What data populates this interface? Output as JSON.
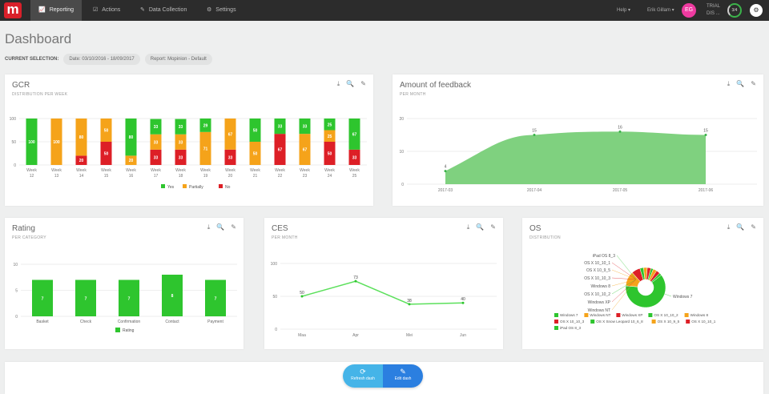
{
  "nav": {
    "logo": "m",
    "items": [
      {
        "icon": "chart-icon",
        "glyph": "📈",
        "label": "Reporting"
      },
      {
        "icon": "checkbox-icon",
        "glyph": "☑",
        "label": "Actions"
      },
      {
        "icon": "link-icon",
        "glyph": "✎",
        "label": "Data Collection"
      },
      {
        "icon": "gear-icon",
        "glyph": "⚙",
        "label": "Settings"
      }
    ],
    "help": "Help ▾",
    "user": "Erik Gillam ▾",
    "initials": "EG",
    "trial": "TRIAL",
    "trial_sub": "DIS ...",
    "ring": "3/4",
    "widget": "⚙"
  },
  "page": {
    "title": "Dashboard",
    "selection_label": "CURRENT SELECTION:",
    "date": "Date: 03/10/2016 - 18/09/2017",
    "report": "Report: Mopinion - Default"
  },
  "tools": [
    "⤓",
    "🔍",
    "✎"
  ],
  "colors": {
    "green": "#2ec52e",
    "orange": "#f5a31a",
    "red": "#dd1f26"
  },
  "cards": {
    "gcr": {
      "title": "GCR",
      "sub": "DISTRIBUTION PER WEEK"
    },
    "feedback": {
      "title": "Amount of feedback",
      "sub": "PER MONTH"
    },
    "rating": {
      "title": "Rating",
      "sub": "PER CATEGORY"
    },
    "ces": {
      "title": "CES",
      "sub": "PER MONTH"
    },
    "os": {
      "title": "OS",
      "sub": "DISTRIBUTION"
    }
  },
  "buttons": {
    "refresh": "Refresh dash",
    "edit": "Edit dash"
  },
  "chart_data": [
    {
      "id": "gcr",
      "type": "bar",
      "stacked": true,
      "ylim": [
        0,
        100
      ],
      "yticks": [
        0,
        50,
        100
      ],
      "categories": [
        "Week 12",
        "Week 13",
        "Week 14",
        "Week 15",
        "Week 16",
        "Week 17",
        "Week 18",
        "Week 19",
        "Week 20",
        "Week 21",
        "Week 22",
        "Week 23",
        "Week 24",
        "Week 25"
      ],
      "series": [
        {
          "name": "No",
          "color": "#dd1f26",
          "values": [
            0,
            0,
            20,
            50,
            0,
            33,
            33,
            0,
            33,
            0,
            67,
            0,
            50,
            33
          ]
        },
        {
          "name": "Partially",
          "color": "#f5a31a",
          "values": [
            0,
            100,
            80,
            50,
            20,
            33,
            33,
            71,
            67,
            50,
            0,
            67,
            25,
            0
          ]
        },
        {
          "name": "Yes",
          "color": "#2ec52e",
          "values": [
            100,
            0,
            0,
            0,
            80,
            33,
            33,
            29,
            0,
            50,
            33,
            33,
            25,
            67
          ]
        }
      ],
      "legend": [
        "Yes",
        "Partially",
        "No"
      ]
    },
    {
      "id": "feedback",
      "type": "area",
      "ylim": [
        0,
        20
      ],
      "yticks": [
        0,
        10,
        20
      ],
      "x": [
        "2017-03",
        "2017-04",
        "2017-05",
        "2017-06"
      ],
      "values": [
        4,
        15,
        16,
        15
      ]
    },
    {
      "id": "rating",
      "type": "bar",
      "ylim": [
        0,
        10
      ],
      "yticks": [
        0,
        5,
        10
      ],
      "categories": [
        "Basket",
        "Check",
        "Confirmation",
        "Contact",
        "Payment"
      ],
      "values": [
        7,
        7,
        7,
        8,
        7
      ],
      "legend": [
        "Rating"
      ]
    },
    {
      "id": "ces",
      "type": "line",
      "ylim": [
        0,
        100
      ],
      "yticks": [
        0,
        50,
        100
      ],
      "x": [
        "Maa",
        "Apr",
        "Mei",
        "Jun"
      ],
      "values": [
        50,
        73,
        38,
        40
      ]
    },
    {
      "id": "os",
      "type": "pie",
      "labels": [
        "Windows 7",
        "Windows NT",
        "Windows XP",
        "OS X 10_10_2",
        "Windows 8",
        "OS X 10_10_3",
        "OS X Snow Leopard 10_6_8",
        "OS X 10_9_5",
        "OS X 10_10_1",
        "iPad OS 8_3"
      ],
      "values": [
        62,
        12,
        7,
        3,
        3,
        3,
        2,
        3,
        3,
        2
      ],
      "colors": [
        "#2ec52e",
        "#f5a31a",
        "#dd1f26",
        "#2ec52e",
        "#f5a31a",
        "#dd1f26",
        "#2ec52e",
        "#f5a31a",
        "#dd1f26",
        "#2ec52e"
      ]
    }
  ]
}
